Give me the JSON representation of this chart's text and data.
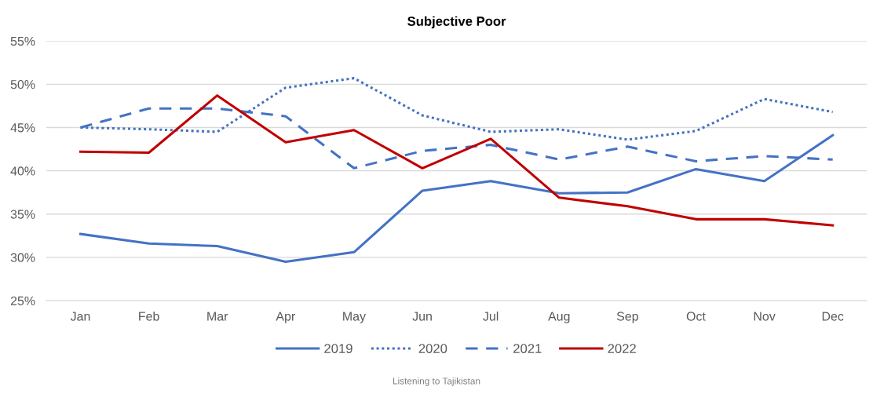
{
  "chart_data": {
    "type": "line",
    "title": "Subjective Poor",
    "categories": [
      "Jan",
      "Feb",
      "Mar",
      "Apr",
      "May",
      "Jun",
      "Jul",
      "Aug",
      "Sep",
      "Oct",
      "Nov",
      "Dec"
    ],
    "series": [
      {
        "name": "2019",
        "color": "#4472c4",
        "line_style": "solid",
        "values": [
          32.7,
          31.6,
          31.3,
          29.5,
          30.6,
          37.7,
          38.8,
          37.4,
          37.5,
          40.2,
          38.8,
          44.1
        ]
      },
      {
        "name": "2020",
        "color": "#4472c4",
        "line_style": "dotted",
        "values": [
          45.0,
          44.8,
          44.5,
          49.6,
          50.7,
          46.4,
          44.5,
          44.8,
          43.6,
          44.6,
          48.3,
          46.8
        ]
      },
      {
        "name": "2021",
        "color": "#4472c4",
        "line_style": "dashed",
        "values": [
          45.0,
          47.2,
          47.2,
          46.3,
          40.3,
          42.3,
          43.0,
          41.3,
          42.8,
          41.1,
          41.7,
          41.3
        ]
      },
      {
        "name": "2022",
        "color": "#c00000",
        "line_style": "solid",
        "values": [
          42.2,
          42.1,
          48.7,
          43.3,
          44.7,
          40.3,
          43.7,
          36.9,
          35.9,
          34.4,
          34.4,
          33.7
        ]
      }
    ],
    "ylim": [
      25,
      55
    ],
    "yticks": [
      {
        "value": 25,
        "label": "25%"
      },
      {
        "value": 30,
        "label": "30%"
      },
      {
        "value": 35,
        "label": "35%"
      },
      {
        "value": 40,
        "label": "40%"
      },
      {
        "value": 45,
        "label": "45%"
      },
      {
        "value": 50,
        "label": "50%"
      },
      {
        "value": 55,
        "label": "55%"
      }
    ],
    "grid": "y",
    "legend": "bottom",
    "annotations": [
      "Listening to Tajikistan"
    ]
  }
}
